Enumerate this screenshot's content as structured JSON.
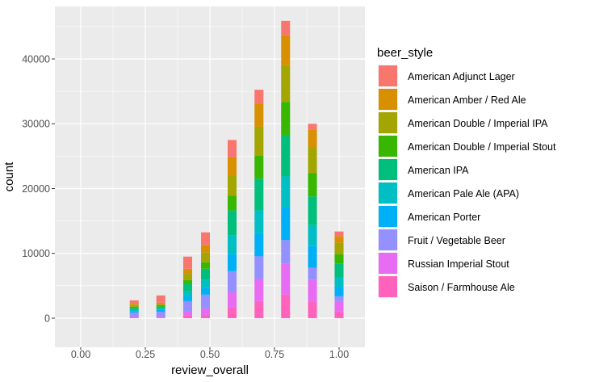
{
  "chart_data": {
    "type": "bar",
    "stacked": true,
    "xlabel": "review_overall",
    "ylabel": "count",
    "xlim": [
      -0.1,
      1.1
    ],
    "ylim": [
      -4490,
      48100
    ],
    "x_ticks": [
      "0.00",
      "0.25",
      "0.50",
      "0.75",
      "1.00"
    ],
    "x_tick_values": [
      0,
      0.25,
      0.5,
      0.75,
      1.0
    ],
    "y_ticks": [
      "0",
      "10000",
      "20000",
      "30000",
      "40000"
    ],
    "y_tick_values": [
      0,
      10000,
      20000,
      30000,
      40000
    ],
    "grid": true,
    "bin_width": 0.0345,
    "x": [
      0.207,
      0.31,
      0.414,
      0.483,
      0.586,
      0.69,
      0.793,
      0.897,
      1.0
    ],
    "legend": {
      "title": "beer_style",
      "position": "right"
    },
    "series": [
      {
        "name": "American Adjunct Lager",
        "color": "#F8766D",
        "values": [
          540,
          1125,
          1875,
          2000,
          2708,
          2125,
          2250,
          958,
          750
        ]
      },
      {
        "name": "American Amber / Red Ale",
        "color": "#D89000",
        "values": [
          125,
          210,
          790,
          1125,
          2750,
          3583,
          4583,
          2750,
          1000
        ]
      },
      {
        "name": "American Double / Imperial IPA",
        "color": "#A3A500",
        "values": [
          330,
          170,
          960,
          1500,
          3167,
          4500,
          5667,
          3917,
          1750
        ]
      },
      {
        "name": "American Double / Imperial Stout",
        "color": "#39B600",
        "values": [
          170,
          210,
          580,
          1000,
          2250,
          3500,
          5083,
          3583,
          1500
        ]
      },
      {
        "name": "American IPA",
        "color": "#00BF7D",
        "values": [
          290,
          250,
          1170,
          1750,
          3875,
          4917,
          6417,
          4417,
          2083
        ]
      },
      {
        "name": "American Pale Ale (APA)",
        "color": "#00BFC4",
        "values": [
          210,
          250,
          830,
          1250,
          2875,
          3500,
          4750,
          3250,
          1500
        ]
      },
      {
        "name": "American Porter",
        "color": "#00B0F6",
        "values": [
          210,
          290,
          670,
          1000,
          2625,
          3583,
          5083,
          3333,
          1417
        ]
      },
      {
        "name": "Fruit / Vegetable Beer",
        "color": "#9590FF",
        "values": [
          625,
          750,
          1625,
          2125,
          3208,
          3500,
          3667,
          1917,
          750
        ]
      },
      {
        "name": "Russian Imperial Stout",
        "color": "#E76BF3",
        "values": [
          125,
          170,
          625,
          1000,
          2417,
          3417,
          4750,
          3333,
          1583
        ]
      },
      {
        "name": "Saison / Farmhouse Ale",
        "color": "#FF62BC",
        "values": [
          125,
          80,
          375,
          500,
          1625,
          2625,
          3625,
          2542,
          1042
        ]
      }
    ]
  }
}
